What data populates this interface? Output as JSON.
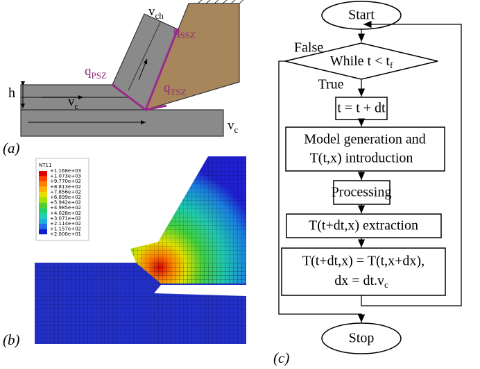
{
  "panel_a": {
    "label": "(a)",
    "v_ch": {
      "main": "v",
      "sub": "ch"
    },
    "q_psz": {
      "main": "q",
      "sub": "PSZ"
    },
    "q_ssz": {
      "main": "q",
      "sub": "SSZ"
    },
    "q_tsz": {
      "main": "q",
      "sub": "TSZ"
    },
    "h": "h",
    "v_c_layer": {
      "main": "v",
      "sub": "c"
    },
    "v_c_work": {
      "main": "v",
      "sub": "c"
    }
  },
  "panel_b": {
    "label": "(b)",
    "legend_title": "NT11",
    "legend_values": [
      "+1.168e+03",
      "+1.073e+03",
      "+9.770e+02",
      "+8.813e+02",
      "+7.856e+02",
      "+6.899e+02",
      "+5.942e+02",
      "+4.985e+02",
      "+4.028e+02",
      "+3.071e+02",
      "+2.114e+02",
      "+1.157e+02",
      "+2.000e+01"
    ]
  },
  "panel_c": {
    "label": "(c)",
    "start": "Start",
    "condition": {
      "main": "While t < t",
      "sub": "f"
    },
    "false_label": "False",
    "true_label": "True",
    "step_time": "t = t + dt",
    "step_model": [
      "Model generation and",
      "T(t,x) introduction"
    ],
    "step_processing": "Processing",
    "step_extraction": "T(t+dt,x) extraction",
    "step_update": {
      "line1": "T(t+dt,x) = T(t,x+dx),",
      "line2": {
        "main": "dx = dt.v",
        "sub": "c"
      }
    },
    "stop": "Stop"
  }
}
